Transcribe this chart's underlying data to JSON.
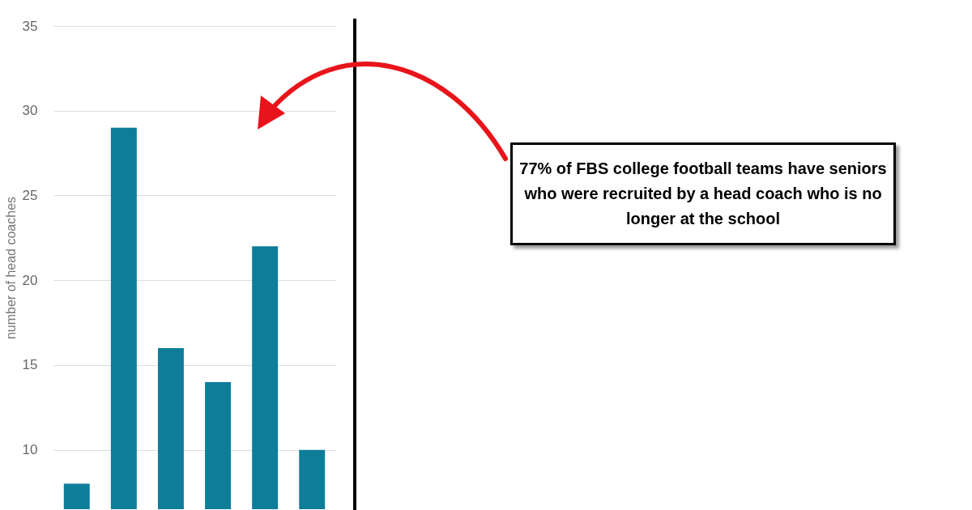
{
  "chart_data": {
    "type": "bar",
    "ylabel": "number  of head coaches",
    "categories": [
      null,
      null,
      null,
      null,
      null,
      null
    ],
    "values": [
      8,
      29,
      16,
      14,
      22,
      10
    ],
    "color": "#0e7d9a",
    "ylim": [
      6.5,
      35
    ],
    "yticks": [
      10,
      15,
      20,
      25,
      30,
      35
    ],
    "tick_labels": "y",
    "grid": "y",
    "annotations": [
      "77% of FBS college football teams have seniors who were recruited by a head coach who is no longer at the school"
    ]
  }
}
